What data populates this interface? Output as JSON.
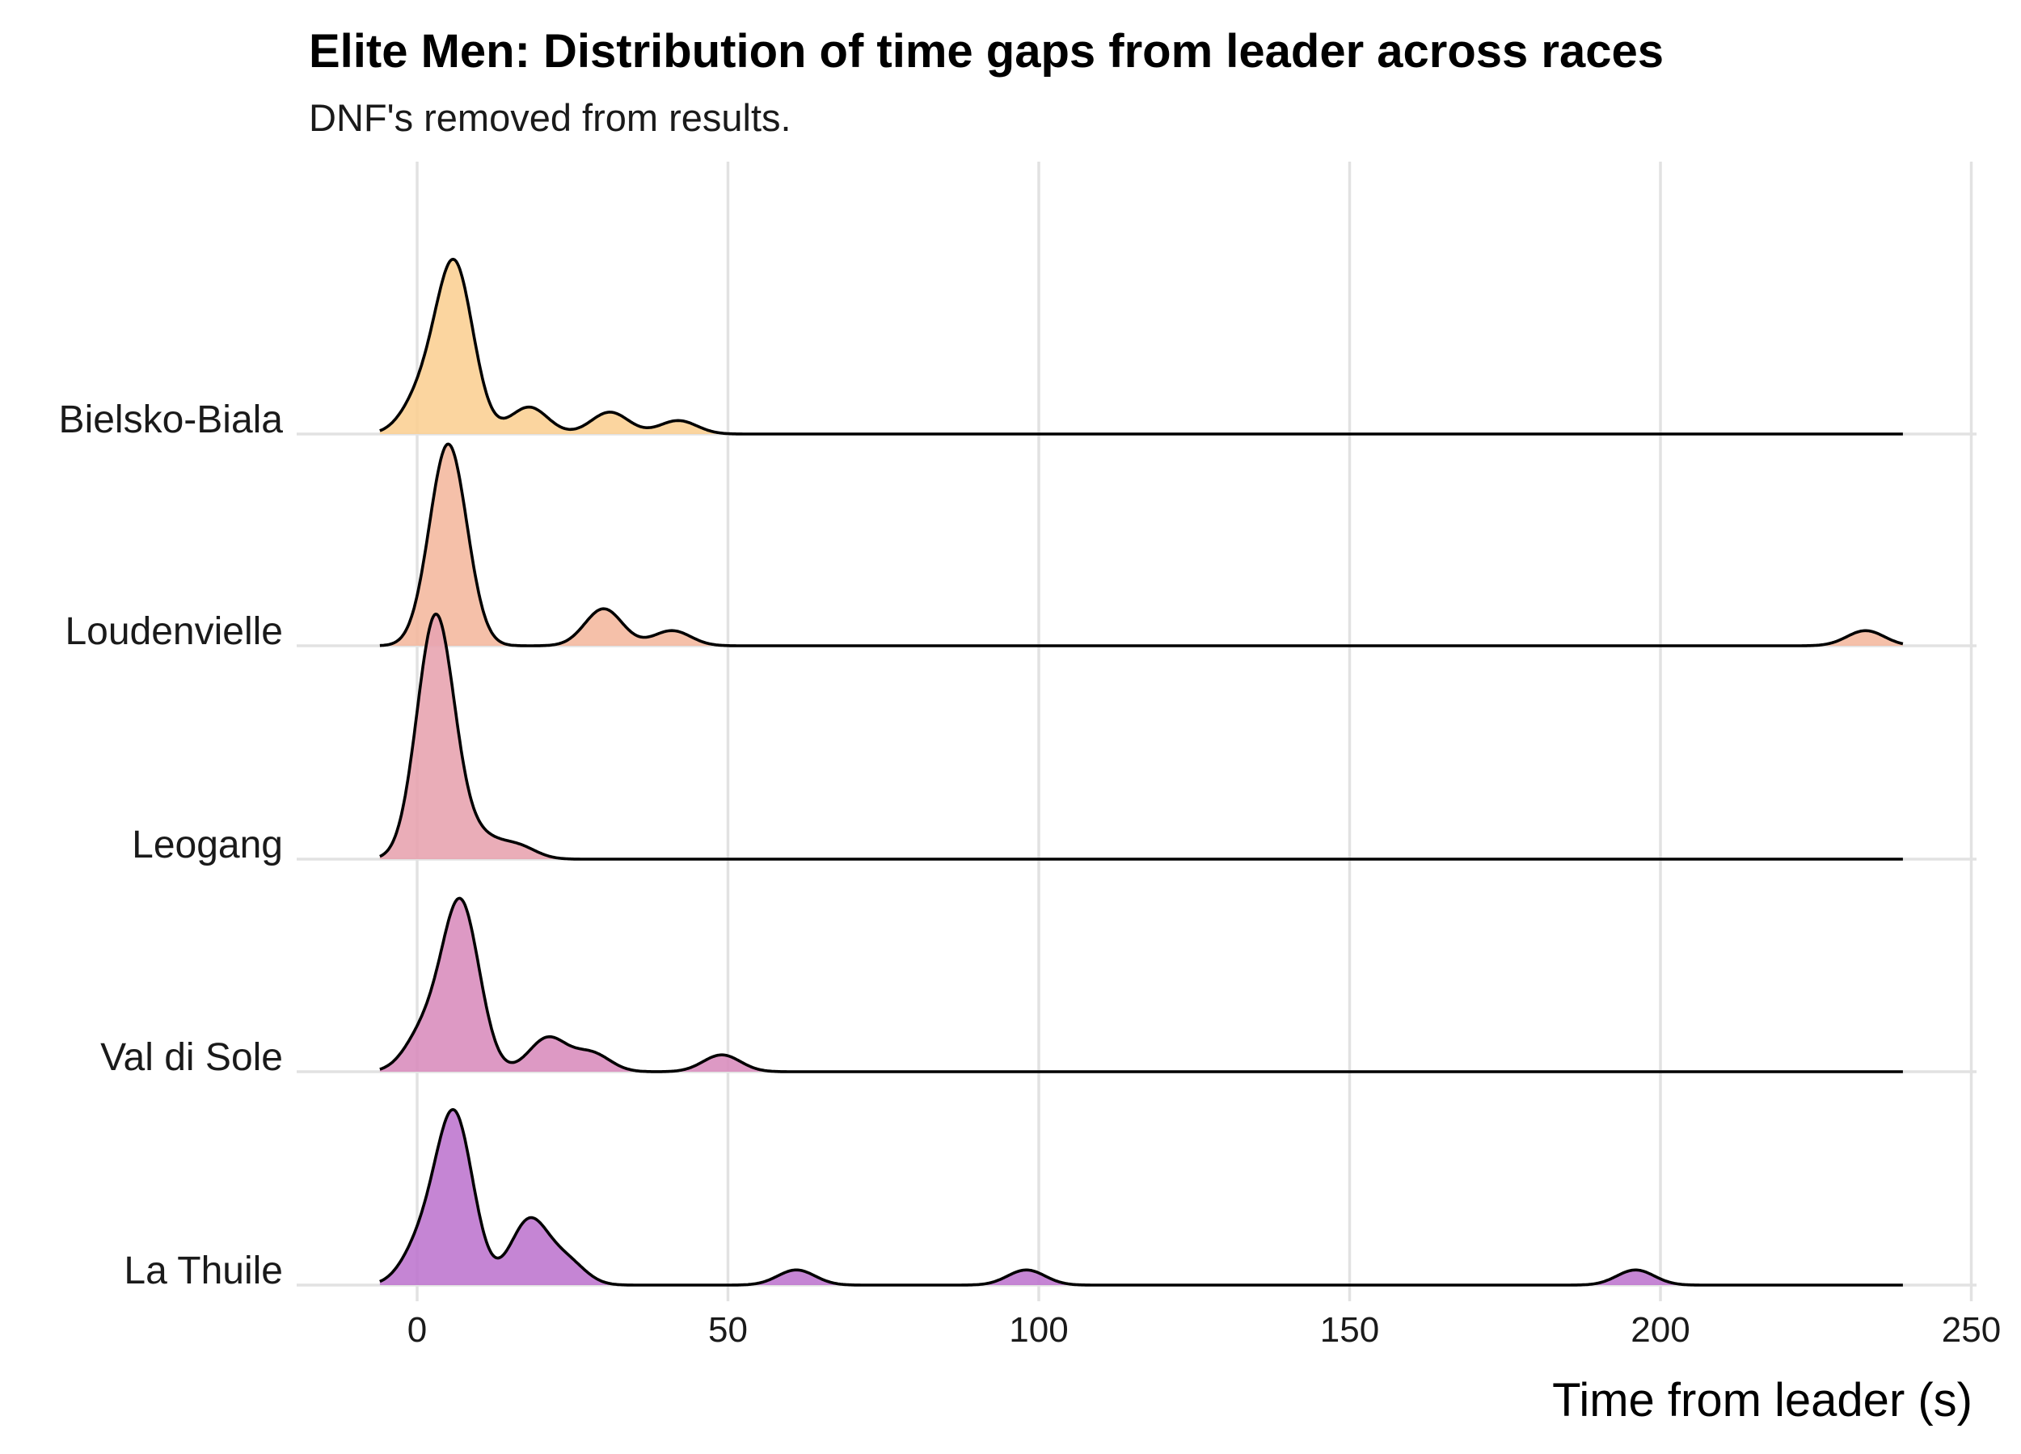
{
  "chart_data": {
    "type": "ridgeline",
    "title": "Elite Men: Distribution of time gaps from leader across races",
    "subtitle": "DNF's removed from results.",
    "xlabel": "Time from leader (s)",
    "ylabel": "",
    "xlim": [
      -22,
      250
    ],
    "xticks": [
      0,
      50,
      100,
      150,
      200,
      250
    ],
    "grid": true,
    "legend": "none",
    "bandwidth": 3,
    "series": [
      {
        "name": "La Thuile",
        "color": "#bf78cf",
        "peaks": [
          [
            6,
            1.0
          ],
          [
            0.5,
            0.22
          ],
          [
            18,
            0.38
          ],
          [
            24,
            0.14
          ],
          [
            61,
            0.09
          ],
          [
            98,
            0.09
          ],
          [
            196,
            0.09
          ]
        ]
      },
      {
        "name": "Val di Sole",
        "color": "#d98ebe",
        "peaks": [
          [
            7,
            1.0
          ],
          [
            1,
            0.22
          ],
          [
            21,
            0.2
          ],
          [
            28,
            0.11
          ],
          [
            49,
            0.1
          ]
        ]
      },
      {
        "name": "Leogang",
        "color": "#e8a4b0",
        "peaks": [
          [
            3,
            1.45
          ],
          [
            10,
            0.12
          ],
          [
            16,
            0.08
          ]
        ]
      },
      {
        "name": "Loudenvielle",
        "color": "#f4b9a0",
        "peaks": [
          [
            5,
            1.2
          ],
          [
            30,
            0.22
          ],
          [
            41,
            0.09
          ],
          [
            233,
            0.09
          ]
        ]
      },
      {
        "name": "Bielsko-Biala",
        "color": "#fbd095",
        "peaks": [
          [
            6,
            1.0
          ],
          [
            0.5,
            0.2
          ],
          [
            18,
            0.16
          ],
          [
            31,
            0.13
          ],
          [
            42,
            0.08
          ]
        ]
      }
    ]
  }
}
